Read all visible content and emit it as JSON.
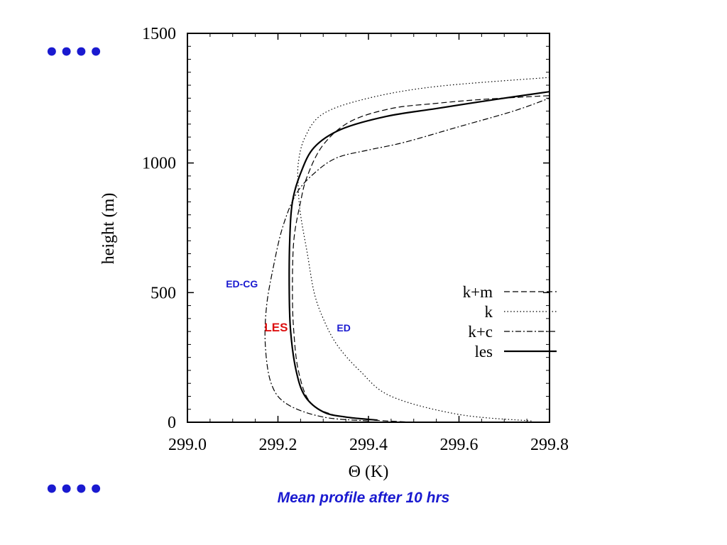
{
  "bullets": {
    "top": "••••",
    "bottom": "••••"
  },
  "caption": "Mean profile after 10 hrs",
  "chart_data": {
    "type": "line",
    "xlabel": "Θ (K)",
    "ylabel": "height (m)",
    "xlim": [
      299.0,
      299.8
    ],
    "ylim": [
      0,
      1500
    ],
    "x_ticks": [
      "299.0",
      "299.2",
      "299.4",
      "299.6",
      "299.8"
    ],
    "y_ticks": [
      "0",
      "500",
      "1000",
      "1500"
    ],
    "legend_position": "bottom-right",
    "series": [
      {
        "name": "k+m",
        "style": "dashed",
        "points": [
          [
            299.5,
            0
          ],
          [
            299.4,
            10
          ],
          [
            299.32,
            30
          ],
          [
            299.27,
            80
          ],
          [
            299.245,
            200
          ],
          [
            299.235,
            350
          ],
          [
            299.232,
            500
          ],
          [
            299.235,
            700
          ],
          [
            299.25,
            850
          ],
          [
            299.265,
            950
          ],
          [
            299.3,
            1070
          ],
          [
            299.36,
            1160
          ],
          [
            299.45,
            1210
          ],
          [
            299.55,
            1230
          ],
          [
            299.65,
            1245
          ],
          [
            299.8,
            1260
          ]
        ]
      },
      {
        "name": "k",
        "style": "dotted",
        "points": [
          [
            299.76,
            5
          ],
          [
            299.6,
            30
          ],
          [
            299.45,
            100
          ],
          [
            299.38,
            200
          ],
          [
            299.33,
            300
          ],
          [
            299.3,
            400
          ],
          [
            299.28,
            500
          ],
          [
            299.265,
            650
          ],
          [
            299.25,
            800
          ],
          [
            299.245,
            900
          ],
          [
            299.245,
            1000
          ],
          [
            299.26,
            1100
          ],
          [
            299.3,
            1190
          ],
          [
            299.4,
            1250
          ],
          [
            299.55,
            1295
          ],
          [
            299.8,
            1330
          ]
        ]
      },
      {
        "name": "k+c",
        "style": "dash-dot",
        "points": [
          [
            299.4,
            5
          ],
          [
            299.3,
            20
          ],
          [
            299.22,
            70
          ],
          [
            299.185,
            150
          ],
          [
            299.172,
            300
          ],
          [
            299.175,
            450
          ],
          [
            299.19,
            600
          ],
          [
            299.21,
            750
          ],
          [
            299.24,
            880
          ],
          [
            299.28,
            960
          ],
          [
            299.33,
            1020
          ],
          [
            299.4,
            1050
          ],
          [
            299.48,
            1080
          ],
          [
            299.6,
            1140
          ],
          [
            299.72,
            1200
          ],
          [
            299.8,
            1250
          ]
        ]
      },
      {
        "name": "les",
        "style": "solid",
        "points": [
          [
            299.42,
            8
          ],
          [
            299.35,
            20
          ],
          [
            299.3,
            40
          ],
          [
            299.26,
            100
          ],
          [
            299.24,
            200
          ],
          [
            299.228,
            350
          ],
          [
            299.225,
            500
          ],
          [
            299.226,
            700
          ],
          [
            299.232,
            850
          ],
          [
            299.25,
            960
          ],
          [
            299.28,
            1060
          ],
          [
            299.34,
            1130
          ],
          [
            299.44,
            1180
          ],
          [
            299.55,
            1210
          ],
          [
            299.68,
            1245
          ],
          [
            299.8,
            1275
          ]
        ]
      }
    ],
    "annotations": [
      {
        "text": "ED-CG",
        "x": 299.085,
        "y": 520,
        "color": "#1a1ad0"
      },
      {
        "text": "LES",
        "x": 299.17,
        "y": 350,
        "color": "#dd1111"
      },
      {
        "text": "ED",
        "x": 299.33,
        "y": 350,
        "color": "#1a1ad0"
      }
    ]
  }
}
